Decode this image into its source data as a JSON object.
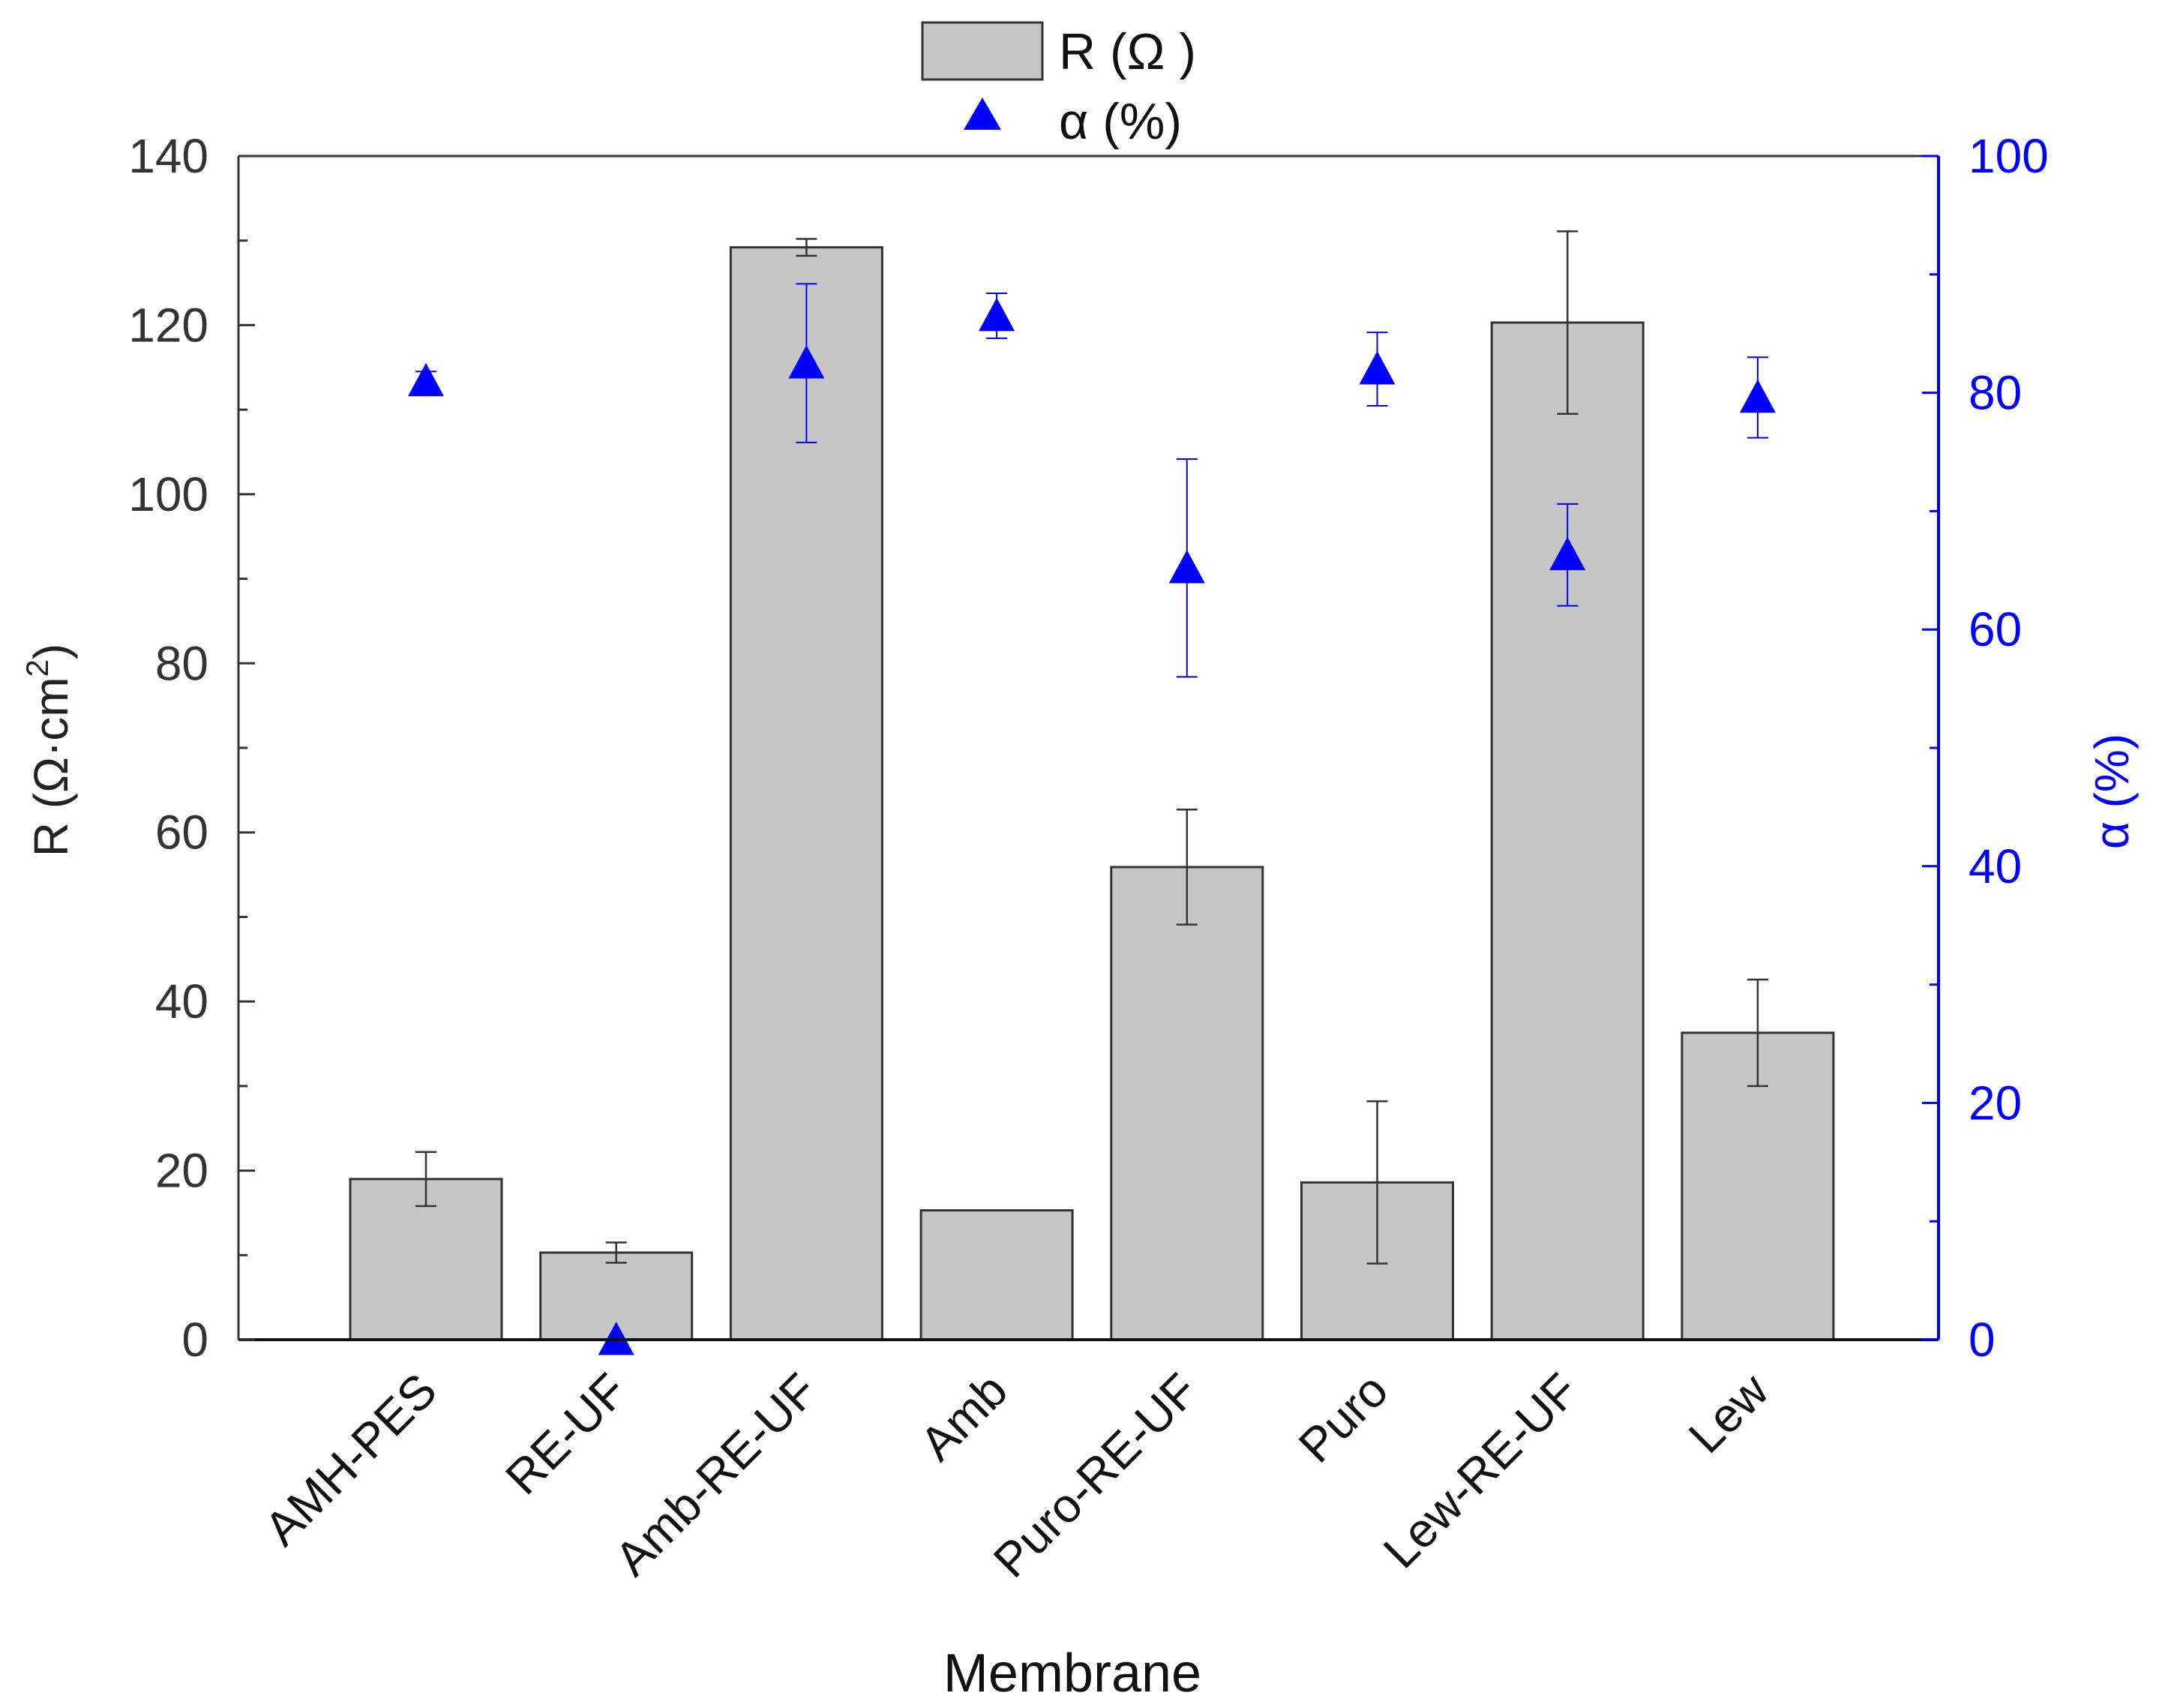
{
  "chart_data": {
    "type": "bar",
    "categories": [
      "AMH-PES",
      "RE-UF",
      "Amb-RE-UF",
      "Amb",
      "Puro-RE-UF",
      "Puro",
      "Lew-RE-UF",
      "Lew"
    ],
    "series": [
      {
        "name": "R (Ω )",
        "kind": "bar",
        "axis": "left",
        "values": [
          19,
          10.3,
          129.2,
          15.3,
          55.9,
          18.6,
          120.3,
          36.3
        ],
        "errors": [
          3.2,
          1.2,
          1.0,
          0,
          6.8,
          9.6,
          10.8,
          6.3
        ],
        "color": "#c6c6c6"
      },
      {
        "name": "α (%)",
        "kind": "scatter",
        "marker": "triangle",
        "axis": "right",
        "values": [
          81,
          0,
          82.5,
          86.5,
          65.2,
          82,
          66.3,
          79.6
        ],
        "errors": [
          0.8,
          0,
          6.7,
          1.9,
          9.2,
          3.1,
          4.3,
          3.4
        ],
        "color": "#0000ff"
      }
    ],
    "title": "",
    "xlabel": "Membrane",
    "ylabel": "R (Ω·cm²)",
    "ylabel_base": "R (Ω·cm",
    "ylabel_sup": "2",
    "ylabel_close": ")",
    "y2label": "α (%)",
    "ylim": [
      0,
      140
    ],
    "yticks": [
      "0",
      "20",
      "40",
      "60",
      "80",
      "100",
      "120",
      "140"
    ],
    "y2lim": [
      0,
      100
    ],
    "y2ticks": [
      "0",
      "20",
      "40",
      "60",
      "80",
      "100"
    ],
    "legend": {
      "position": "top-center",
      "entries": [
        "R (Ω )",
        "α (%)"
      ]
    },
    "colors": {
      "bar": "#c6c6c6",
      "bar_edge": "#333333",
      "marker": "#0000ff",
      "left_axis": "#333333",
      "right_axis": "#0000ff"
    }
  }
}
